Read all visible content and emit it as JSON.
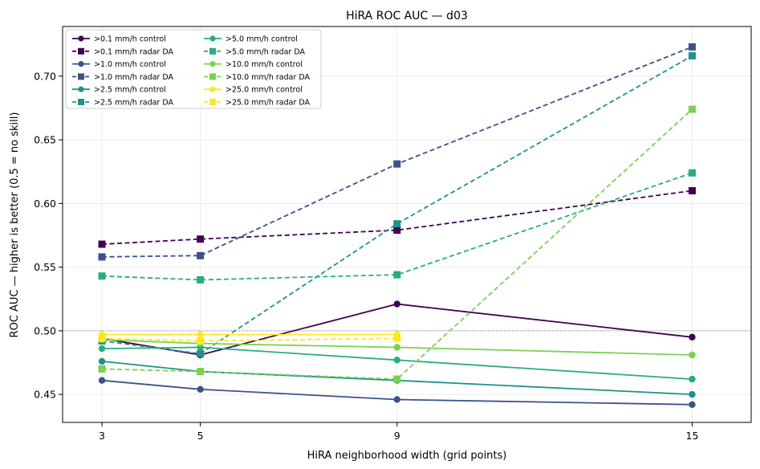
{
  "chart_data": {
    "type": "line",
    "title": "HiRA ROC AUC — d03",
    "xlabel": "HiRA neighborhood width (grid points)",
    "ylabel": "ROC AUC — higher is better (0.5 = no skill)",
    "x": [
      3,
      5,
      9,
      15
    ],
    "xlim": [
      2.2,
      16.2
    ],
    "ylim": [
      0.428,
      0.739
    ],
    "xticks": [
      3,
      5,
      9,
      15
    ],
    "yticks": [
      0.45,
      0.5,
      0.55,
      0.6,
      0.65,
      0.7
    ],
    "ytick_labels": [
      "0.45",
      "0.50",
      "0.55",
      "0.60",
      "0.65",
      "0.70"
    ],
    "reference_line": 0.5,
    "grid": true,
    "legend_position": "top-left",
    "series": [
      {
        "name": ">0.1 mm/h control",
        "color": "#440154",
        "style": "solid",
        "marker": "circle",
        "values": [
          0.494,
          0.481,
          0.521,
          0.495
        ]
      },
      {
        "name": ">0.1 mm/h radar DA",
        "color": "#440154",
        "style": "dashed",
        "marker": "square",
        "values": [
          0.568,
          0.572,
          0.579,
          0.61
        ]
      },
      {
        "name": ">1.0 mm/h control",
        "color": "#3b528b",
        "style": "solid",
        "marker": "circle",
        "values": [
          0.461,
          0.454,
          0.446,
          0.442
        ]
      },
      {
        "name": ">1.0 mm/h radar DA",
        "color": "#3b528b",
        "style": "dashed",
        "marker": "square",
        "values": [
          0.558,
          0.559,
          0.631,
          0.723
        ]
      },
      {
        "name": ">2.5 mm/h control",
        "color": "#21918c",
        "style": "solid",
        "marker": "circle",
        "values": [
          0.476,
          0.468,
          0.461,
          0.45
        ]
      },
      {
        "name": ">2.5 mm/h radar DA",
        "color": "#21918c",
        "style": "dashed",
        "marker": "square",
        "values": [
          0.492,
          0.482,
          0.584,
          0.716
        ]
      },
      {
        "name": ">5.0 mm/h control",
        "color": "#27ad81",
        "style": "solid",
        "marker": "circle",
        "values": [
          0.486,
          0.487,
          0.477,
          0.462
        ]
      },
      {
        "name": ">5.0 mm/h radar DA",
        "color": "#27ad81",
        "style": "dashed",
        "marker": "square",
        "values": [
          0.543,
          0.54,
          0.544,
          0.624
        ]
      },
      {
        "name": ">10.0 mm/h control",
        "color": "#7ad151",
        "style": "solid",
        "marker": "circle",
        "values": [
          0.493,
          0.49,
          0.487,
          0.481
        ]
      },
      {
        "name": ">10.0 mm/h radar DA",
        "color": "#7ad151",
        "style": "dashed",
        "marker": "square",
        "values": [
          0.47,
          0.468,
          0.462,
          0.674
        ]
      },
      {
        "name": ">25.0 mm/h control",
        "color": "#fde725",
        "style": "solid",
        "marker": "circle",
        "values": [
          0.497,
          0.497,
          0.497,
          null
        ]
      },
      {
        "name": ">25.0 mm/h radar DA",
        "color": "#fde725",
        "style": "dashed",
        "marker": "square",
        "values": [
          0.494,
          0.492,
          0.494,
          null
        ]
      }
    ]
  }
}
